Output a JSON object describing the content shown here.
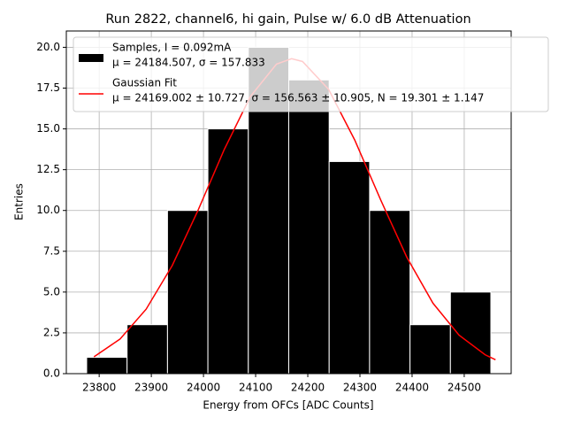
{
  "chart_data": {
    "type": "histogram",
    "title": "Run 2822, channel6, hi gain, Pulse w/ 6.0 dB Attenuation",
    "x_label": "Energy from OFCs [ADC Counts]",
    "y_label": "Entries",
    "xlim": [
      23737,
      24590
    ],
    "ylim": [
      0,
      21
    ],
    "xticks": [
      23800,
      23900,
      24000,
      24100,
      24200,
      24300,
      24400,
      24500
    ],
    "yticks": [
      {
        "value": 0,
        "label": "0.0"
      },
      {
        "value": 2.5,
        "label": "2.5"
      },
      {
        "value": 5,
        "label": "5.0"
      },
      {
        "value": 7.5,
        "label": "7.5"
      },
      {
        "value": 10,
        "label": "10.0"
      },
      {
        "value": 12.5,
        "label": "12.5"
      },
      {
        "value": 15,
        "label": "15.0"
      },
      {
        "value": 17.5,
        "label": "17.5"
      },
      {
        "value": 20,
        "label": "20.0"
      }
    ],
    "grid": true,
    "legend": "upper left",
    "series": [
      {
        "type": "bar",
        "name": "Samples, I = 0.092mA",
        "detail": "μ = 24184.507, σ = 157.833",
        "color": "#000000",
        "bins": [
          23776,
          23853.5,
          23931,
          24008.5,
          24086,
          24163.5,
          24241,
          24318.5,
          24396,
          24473.5,
          24551
        ],
        "values": [
          1,
          3,
          10,
          15,
          20,
          18,
          13,
          10,
          3,
          5
        ]
      },
      {
        "type": "line",
        "name": "Gaussian Fit",
        "detail": "μ = 24169.002 ± 10.727, σ = 156.563 ± 10.905, N = 19.301 ± 1.147",
        "color": "#ff0000",
        "x": [
          23790,
          23840,
          23890,
          23940,
          23990,
          24040,
          24090,
          24140,
          24169,
          24190,
          24240,
          24290,
          24340,
          24390,
          24440,
          24490,
          24540,
          24560
        ],
        "values": [
          1.03,
          2.12,
          3.95,
          6.62,
          10.04,
          13.75,
          16.99,
          18.97,
          19.3,
          19.13,
          17.42,
          14.32,
          10.63,
          7.13,
          4.32,
          2.36,
          1.16,
          0.85
        ]
      }
    ]
  }
}
